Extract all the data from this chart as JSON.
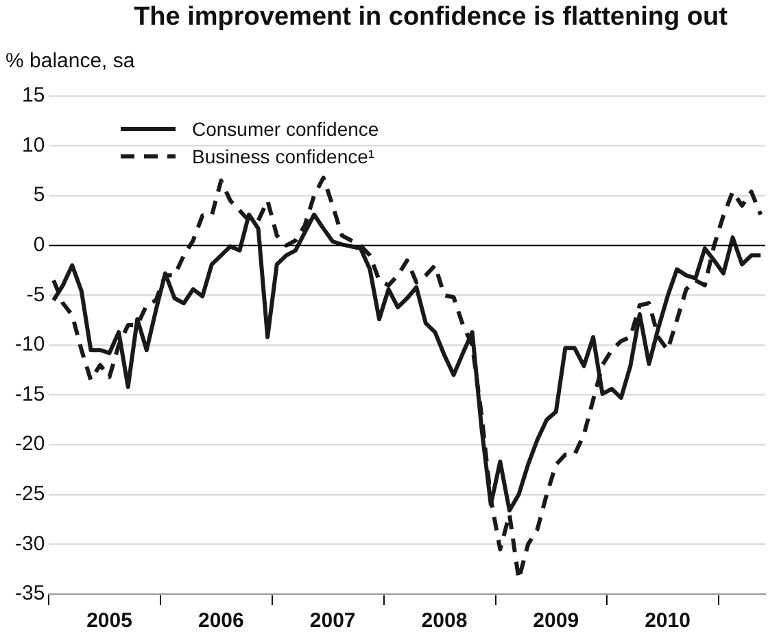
{
  "chart_data": {
    "type": "line",
    "title": "The improvement in confidence is flattening out",
    "ylabel": "% balance, sa",
    "categories": [
      null,
      null,
      null,
      null,
      null,
      null,
      "2005",
      null,
      null,
      null,
      null,
      null,
      null,
      null,
      null,
      null,
      null,
      null,
      "2006",
      null,
      null,
      null,
      null,
      null,
      null,
      null,
      null,
      null,
      null,
      null,
      "2007",
      null,
      null,
      null,
      null,
      null,
      null,
      null,
      null,
      null,
      null,
      null,
      "2008",
      null,
      null,
      null,
      null,
      null,
      null,
      null,
      null,
      null,
      null,
      null,
      "2009",
      null,
      null,
      null,
      null,
      null,
      null,
      null,
      null,
      null,
      null,
      null,
      "2010",
      null,
      null,
      null,
      null,
      null,
      null,
      null,
      null,
      null,
      null
    ],
    "series": [
      {
        "name": "Consumer confidence",
        "color": "#1a1a1a",
        "line_style": "solid",
        "values": [
          -5.5,
          -4,
          -2,
          -4.6,
          -10.5,
          -10.5,
          -10.8,
          -8.7,
          -14.2,
          -7.4,
          -10.5,
          -6.5,
          -2.8,
          -5.3,
          -5.8,
          -4.4,
          -5.1,
          -1.9,
          -1,
          -0.1,
          -0.5,
          3.1,
          1.7,
          -9.2,
          -1.9,
          -1,
          -0.5,
          1.3,
          3.1,
          1.7,
          0.4,
          0.1,
          -0.1,
          -0.3,
          -2.4,
          -7.4,
          -4.4,
          -6.2,
          -5.3,
          -4.2,
          -7.8,
          -8.7,
          -11,
          -13,
          -10.8,
          -8.7,
          -18.3,
          -26,
          -21.7,
          -26.6,
          -25,
          -22,
          -19.5,
          -17.5,
          -16.7,
          -10.3,
          -10.3,
          -12.1,
          -9.2,
          -14.9,
          -14.4,
          -15.3,
          -12.1,
          -6.9,
          -11.9,
          -8.3,
          -5.1,
          -2.4,
          -3,
          -3.3,
          -0.3,
          -1.5,
          -2.8,
          0.8,
          -1.9,
          -1,
          -1
        ]
      },
      {
        "name": "Business confidence¹",
        "color": "#1a1a1a",
        "line_style": "dashed",
        "values": [
          -3.5,
          -5.8,
          -7,
          -10.5,
          -13.5,
          -12,
          -13.2,
          -10,
          -8,
          -8,
          -6,
          -5.5,
          -3,
          -3,
          -1,
          0.5,
          3,
          3,
          6.5,
          4.5,
          3.5,
          2.5,
          2.5,
          4.5,
          1,
          0,
          0.5,
          2,
          5,
          6.8,
          4,
          1,
          0.5,
          0,
          -1,
          -3.5,
          -4,
          -3,
          -1.5,
          -3.7,
          -3,
          -2,
          -5,
          -5.2,
          -8,
          -10,
          -17,
          -25.5,
          -30.5,
          -27,
          -33.5,
          -30,
          -28.5,
          -25,
          -22,
          -21,
          -21,
          -19,
          -15.5,
          -12,
          -10.5,
          -9.6,
          -9.2,
          -6,
          -5.8,
          -9.2,
          -10.5,
          -7.5,
          -4.4,
          -3.5,
          -4,
          0,
          3,
          5.4,
          4,
          5.4,
          3.1
        ]
      }
    ],
    "ylim": [
      -35,
      15
    ],
    "yticks": [
      -35,
      -30,
      -25,
      -20,
      -15,
      -10,
      -5,
      0,
      5,
      10,
      15
    ],
    "grid": "y",
    "legend": "top left",
    "marker": "none",
    "ref_lines": [
      {
        "axis": "y",
        "value": 0,
        "color": "#000000"
      }
    ]
  }
}
